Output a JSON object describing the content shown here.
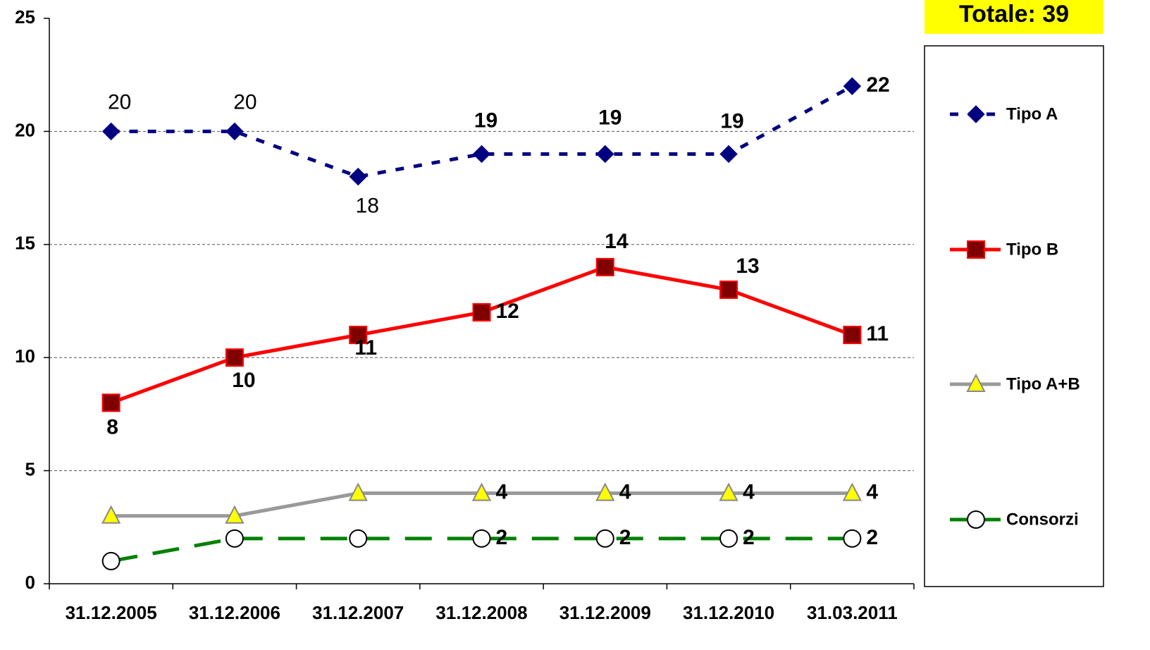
{
  "chart_data": {
    "type": "line",
    "annotation": "Totale: 39",
    "categories": [
      "31.12.2005",
      "31.12.2006",
      "31.12.2007",
      "31.12.2008",
      "31.12.2009",
      "31.12.2010",
      "31.03.2011"
    ],
    "ylim": [
      0,
      25
    ],
    "yticks": [
      0,
      5,
      10,
      15,
      20,
      25
    ],
    "grid": true,
    "legend": "right",
    "series": [
      {
        "name": "Tipo A",
        "color": "#000080",
        "marker": "diamond",
        "marker_color": "#000080",
        "dash": "dashed",
        "values": [
          20,
          20,
          18,
          19,
          19,
          19,
          22
        ],
        "labels": [
          true,
          true,
          true,
          true,
          true,
          true,
          true
        ]
      },
      {
        "name": "Tipo B",
        "color": "#ff0000",
        "marker": "square",
        "marker_color": "#800000",
        "dash": "solid",
        "values": [
          8,
          10,
          11,
          12,
          14,
          13,
          11
        ],
        "labels": [
          true,
          true,
          true,
          true,
          true,
          true,
          true
        ]
      },
      {
        "name": "Tipo A+B",
        "color": "#999999",
        "marker": "triangle",
        "marker_color": "#ffff00",
        "dash": "solid",
        "values": [
          3,
          3,
          4,
          4,
          4,
          4,
          4
        ],
        "labels": [
          false,
          false,
          false,
          true,
          true,
          true,
          true
        ]
      },
      {
        "name": "Consorzi",
        "color": "#008000",
        "marker": "circle",
        "marker_color": "#ffffff",
        "dash": "longdash",
        "values": [
          1,
          2,
          2,
          2,
          2,
          2,
          2
        ],
        "labels": [
          false,
          false,
          false,
          true,
          true,
          true,
          true
        ]
      }
    ]
  }
}
